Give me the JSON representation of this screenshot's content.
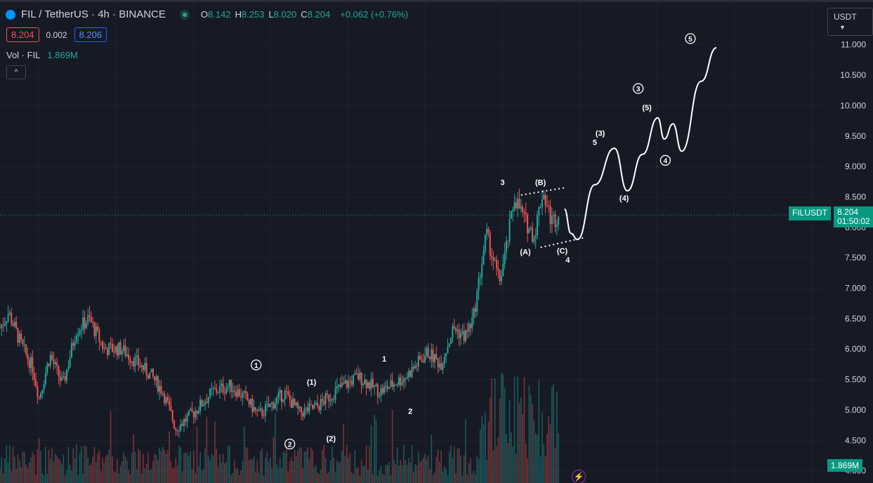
{
  "header": {
    "symbol_title": "FIL / TetherUS · 4h · BINANCE",
    "ohlc": [
      {
        "k": "O",
        "v": "8.142"
      },
      {
        "k": "H",
        "v": "8.253"
      },
      {
        "k": "L",
        "v": "8.020"
      },
      {
        "k": "C",
        "v": "8.204"
      }
    ],
    "change": "+0.062 (+0.76%)",
    "sell_price": "8.204",
    "spread": "0.002",
    "buy_price": "8.206",
    "volume_label": "Vol · FIL",
    "volume_value": "1.869M",
    "currency_selector": "USDT"
  },
  "colors": {
    "background": "#161a25",
    "up": "#26a69a",
    "down": "#ef5350",
    "annotation": "#ffffff",
    "price_tag": "#089981"
  },
  "icons": [
    "symbol-logo-icon",
    "market-status-icon",
    "chevron-up-icon",
    "chevron-down-icon",
    "lightning-icon"
  ],
  "last_price_tag": {
    "symbol": "FILUSDT",
    "price": "8.204",
    "countdown": "01:50:02"
  },
  "volume_tag": "1.869M",
  "chart_data": {
    "type": "candlestick",
    "yaxis": {
      "ticks": [
        "11.000",
        "10.500",
        "10.000",
        "9.500",
        "9.000",
        "8.500",
        "8.000",
        "7.500",
        "7.000",
        "6.500",
        "6.000",
        "5.500",
        "5.000",
        "4.500",
        "4.000"
      ],
      "range": [
        3.8,
        11.7
      ]
    },
    "price_path": [
      {
        "t": 0,
        "p": 6.35
      },
      {
        "t": 8,
        "p": 6.6
      },
      {
        "t": 20,
        "p": 6.05
      },
      {
        "t": 30,
        "p": 5.7
      },
      {
        "t": 36,
        "p": 5.2
      },
      {
        "t": 46,
        "p": 5.9
      },
      {
        "t": 58,
        "p": 5.4
      },
      {
        "t": 70,
        "p": 6.3
      },
      {
        "t": 82,
        "p": 6.5
      },
      {
        "t": 96,
        "p": 6.0
      },
      {
        "t": 112,
        "p": 6.0
      },
      {
        "t": 128,
        "p": 5.75
      },
      {
        "t": 140,
        "p": 5.55
      },
      {
        "t": 150,
        "p": 5.3
      },
      {
        "t": 162,
        "p": 4.7
      },
      {
        "t": 178,
        "p": 4.95
      },
      {
        "t": 196,
        "p": 5.3
      },
      {
        "t": 212,
        "p": 5.4
      },
      {
        "t": 226,
        "p": 5.2
      },
      {
        "t": 238,
        "p": 4.92
      },
      {
        "t": 248,
        "p": 5.05
      },
      {
        "t": 262,
        "p": 5.28
      },
      {
        "t": 276,
        "p": 4.95
      },
      {
        "t": 292,
        "p": 5.05
      },
      {
        "t": 312,
        "p": 5.35
      },
      {
        "t": 330,
        "p": 5.55
      },
      {
        "t": 350,
        "p": 5.3
      },
      {
        "t": 374,
        "p": 5.55
      },
      {
        "t": 394,
        "p": 5.95
      },
      {
        "t": 406,
        "p": 5.75
      },
      {
        "t": 418,
        "p": 6.35
      },
      {
        "t": 428,
        "p": 6.2
      },
      {
        "t": 436,
        "p": 6.5
      },
      {
        "t": 448,
        "p": 7.9
      },
      {
        "t": 460,
        "p": 7.1
      },
      {
        "t": 466,
        "p": 7.6
      },
      {
        "t": 474,
        "p": 8.5
      },
      {
        "t": 484,
        "p": 8.1
      },
      {
        "t": 492,
        "p": 7.85
      },
      {
        "t": 500,
        "p": 8.6
      },
      {
        "t": 508,
        "p": 8.1
      },
      {
        "t": 515,
        "p": 8.2
      }
    ],
    "projection_path": [
      {
        "t": 520,
        "p": 8.3
      },
      {
        "t": 526,
        "p": 7.9
      },
      {
        "t": 532,
        "p": 7.8
      },
      {
        "t": 548,
        "p": 8.7
      },
      {
        "t": 566,
        "p": 9.3
      },
      {
        "t": 578,
        "p": 8.6
      },
      {
        "t": 592,
        "p": 9.2
      },
      {
        "t": 606,
        "p": 9.8
      },
      {
        "t": 612,
        "p": 9.45
      },
      {
        "t": 620,
        "p": 9.7
      },
      {
        "t": 628,
        "p": 9.25
      },
      {
        "t": 646,
        "p": 10.4
      },
      {
        "t": 660,
        "p": 10.95
      }
    ],
    "dotted_lines": [
      [
        {
          "t": 480,
          "p": 8.53
        },
        {
          "t": 520,
          "p": 8.65
        }
      ],
      [
        {
          "t": 498,
          "p": 7.67
        },
        {
          "t": 538,
          "p": 7.83
        }
      ]
    ],
    "wave_labels": [
      {
        "text": "1",
        "t": 236,
        "p": 5.74,
        "circled": true
      },
      {
        "text": "2",
        "t": 267,
        "p": 4.44,
        "circled": true
      },
      {
        "text": "(1)",
        "t": 287,
        "p": 5.46,
        "circled": false
      },
      {
        "text": "(2)",
        "t": 305,
        "p": 4.53,
        "circled": false
      },
      {
        "text": "1",
        "t": 354,
        "p": 5.84,
        "circled": false
      },
      {
        "text": "2",
        "t": 378,
        "p": 4.98,
        "circled": false
      },
      {
        "text": "3",
        "t": 463,
        "p": 8.74,
        "circled": false
      },
      {
        "text": "(B)",
        "t": 498,
        "p": 8.74,
        "circled": false
      },
      {
        "text": "(A)",
        "t": 484,
        "p": 7.6,
        "circled": false
      },
      {
        "text": "(C)",
        "t": 518,
        "p": 7.62,
        "circled": false
      },
      {
        "text": "4",
        "t": 523,
        "p": 7.47,
        "circled": false
      },
      {
        "text": "5",
        "t": 548,
        "p": 9.4,
        "circled": false
      },
      {
        "text": "(3)",
        "t": 553,
        "p": 9.55,
        "circled": false
      },
      {
        "text": "(4)",
        "t": 575,
        "p": 8.48,
        "circled": false
      },
      {
        "text": "3",
        "t": 588,
        "p": 10.28,
        "circled": true
      },
      {
        "text": "(5)",
        "t": 596,
        "p": 9.97,
        "circled": false
      },
      {
        "text": "4",
        "t": 613,
        "p": 9.1,
        "circled": true
      },
      {
        "text": "5",
        "t": 636,
        "p": 11.1,
        "circled": true
      }
    ]
  }
}
